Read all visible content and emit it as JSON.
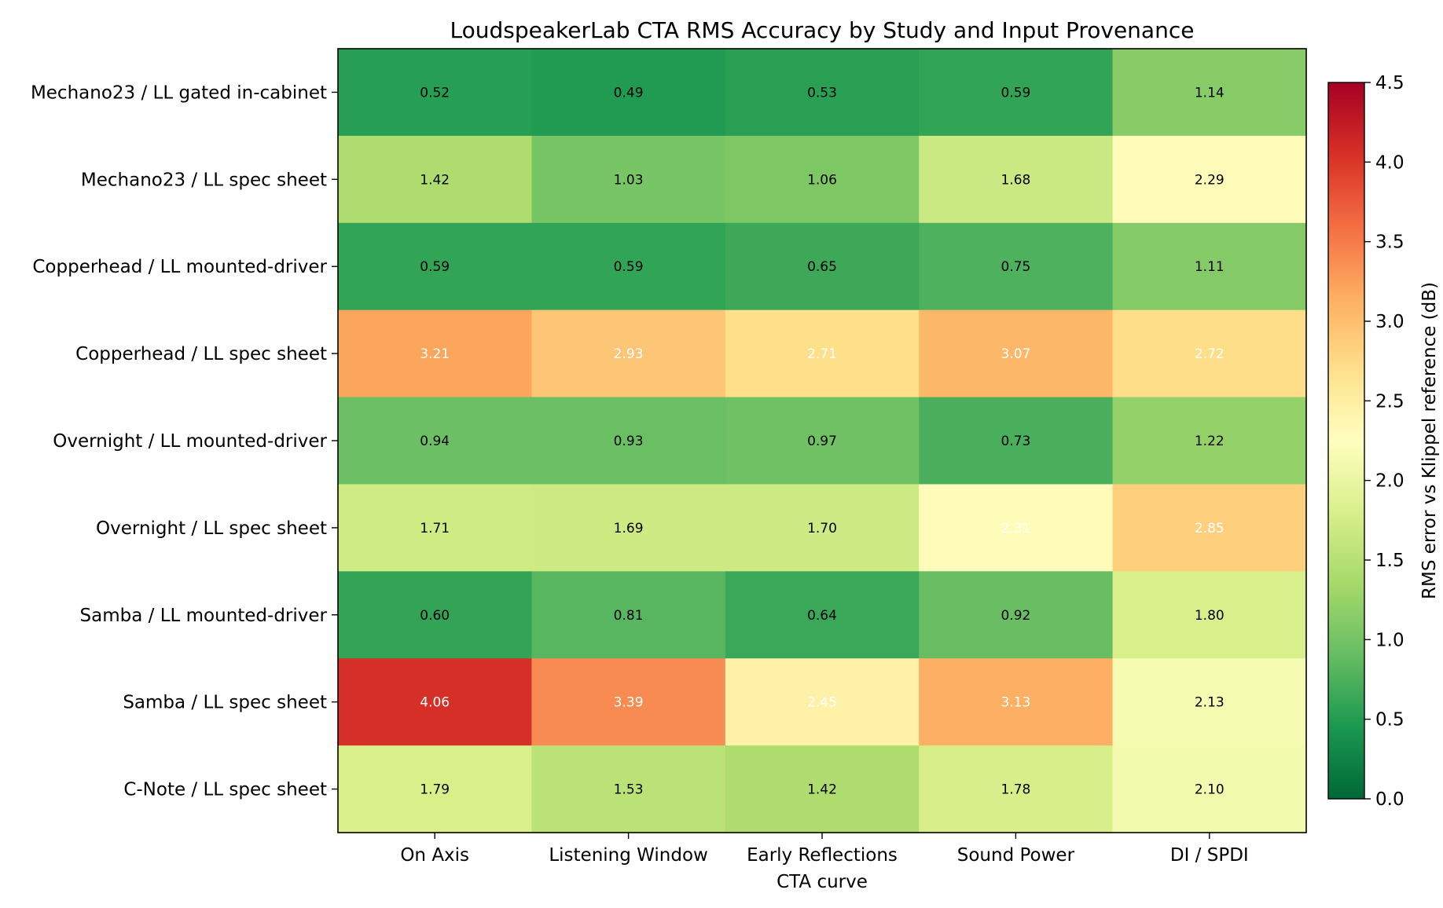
{
  "chart_data": {
    "type": "heatmap",
    "title": "LoudspeakerLab CTA RMS Accuracy by Study and Input Provenance",
    "xlabel": "CTA curve",
    "ylabel": "",
    "columns": [
      "On Axis",
      "Listening Window",
      "Early Reflections",
      "Sound Power",
      "DI / SPDI"
    ],
    "rows": [
      "Mechano23 / LL gated in-cabinet",
      "Mechano23 / LL spec sheet",
      "Copperhead / LL mounted-driver",
      "Copperhead / LL spec sheet",
      "Overnight / LL mounted-driver",
      "Overnight / LL spec sheet",
      "Samba / LL mounted-driver",
      "Samba / LL spec sheet",
      "C-Note / LL spec sheet"
    ],
    "values": [
      [
        0.52,
        0.49,
        0.53,
        0.59,
        1.14
      ],
      [
        1.42,
        1.03,
        1.06,
        1.68,
        2.29
      ],
      [
        0.59,
        0.59,
        0.65,
        0.75,
        1.11
      ],
      [
        3.21,
        2.93,
        2.71,
        3.07,
        2.72
      ],
      [
        0.94,
        0.93,
        0.97,
        0.73,
        1.22
      ],
      [
        1.71,
        1.69,
        1.7,
        2.31,
        2.85
      ],
      [
        0.6,
        0.81,
        0.64,
        0.92,
        1.8
      ],
      [
        4.06,
        3.39,
        2.45,
        3.13,
        2.13
      ],
      [
        1.79,
        1.53,
        1.42,
        1.78,
        2.1
      ]
    ],
    "colorbar": {
      "label": "RMS error vs Klippel reference (dB)",
      "range": [
        0.0,
        4.5
      ],
      "ticks": [
        "0.0",
        "0.5",
        "1.0",
        "1.5",
        "2.0",
        "2.5",
        "3.0",
        "3.5",
        "4.0",
        "4.5"
      ],
      "colormap": "RdYlGn_r"
    },
    "text_light_threshold": 2.3
  }
}
